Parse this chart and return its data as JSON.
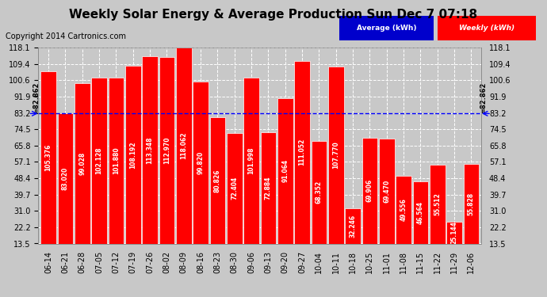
{
  "title": "Weekly Solar Energy & Average Production Sun Dec 7 07:18",
  "copyright": "Copyright 2014 Cartronics.com",
  "categories": [
    "06-14",
    "06-21",
    "06-28",
    "07-05",
    "07-12",
    "07-19",
    "07-26",
    "08-02",
    "08-09",
    "08-16",
    "08-23",
    "08-30",
    "09-06",
    "09-13",
    "09-20",
    "09-27",
    "10-04",
    "10-11",
    "10-18",
    "10-25",
    "11-01",
    "11-08",
    "11-15",
    "11-22",
    "11-29",
    "12-06"
  ],
  "values": [
    105.376,
    83.02,
    99.028,
    102.128,
    101.88,
    108.192,
    113.348,
    112.97,
    118.062,
    99.82,
    80.826,
    72.404,
    101.998,
    72.884,
    91.064,
    111.052,
    68.352,
    107.77,
    32.246,
    69.906,
    69.47,
    49.556,
    46.564,
    55.512,
    25.144,
    55.828
  ],
  "bar_color": "#ff0000",
  "average_value": 82.862,
  "average_color": "#0000ff",
  "ylim_min": 13.5,
  "ylim_max": 118.1,
  "yticks": [
    13.5,
    22.2,
    31.0,
    39.7,
    48.4,
    57.1,
    65.8,
    74.5,
    83.2,
    91.9,
    100.6,
    109.4,
    118.1
  ],
  "background_color": "#c8c8c8",
  "plot_bg_color": "#c8c8c8",
  "bar_edge_color": "#ffffff",
  "grid_color": "#ffffff",
  "title_fontsize": 11,
  "copyright_fontsize": 7,
  "value_fontsize": 5.5,
  "tick_fontsize": 7,
  "legend_avg_label": "Average (kWh)",
  "legend_weekly_label": "Weekly (kWh)",
  "avg_value_str": "=82.862"
}
